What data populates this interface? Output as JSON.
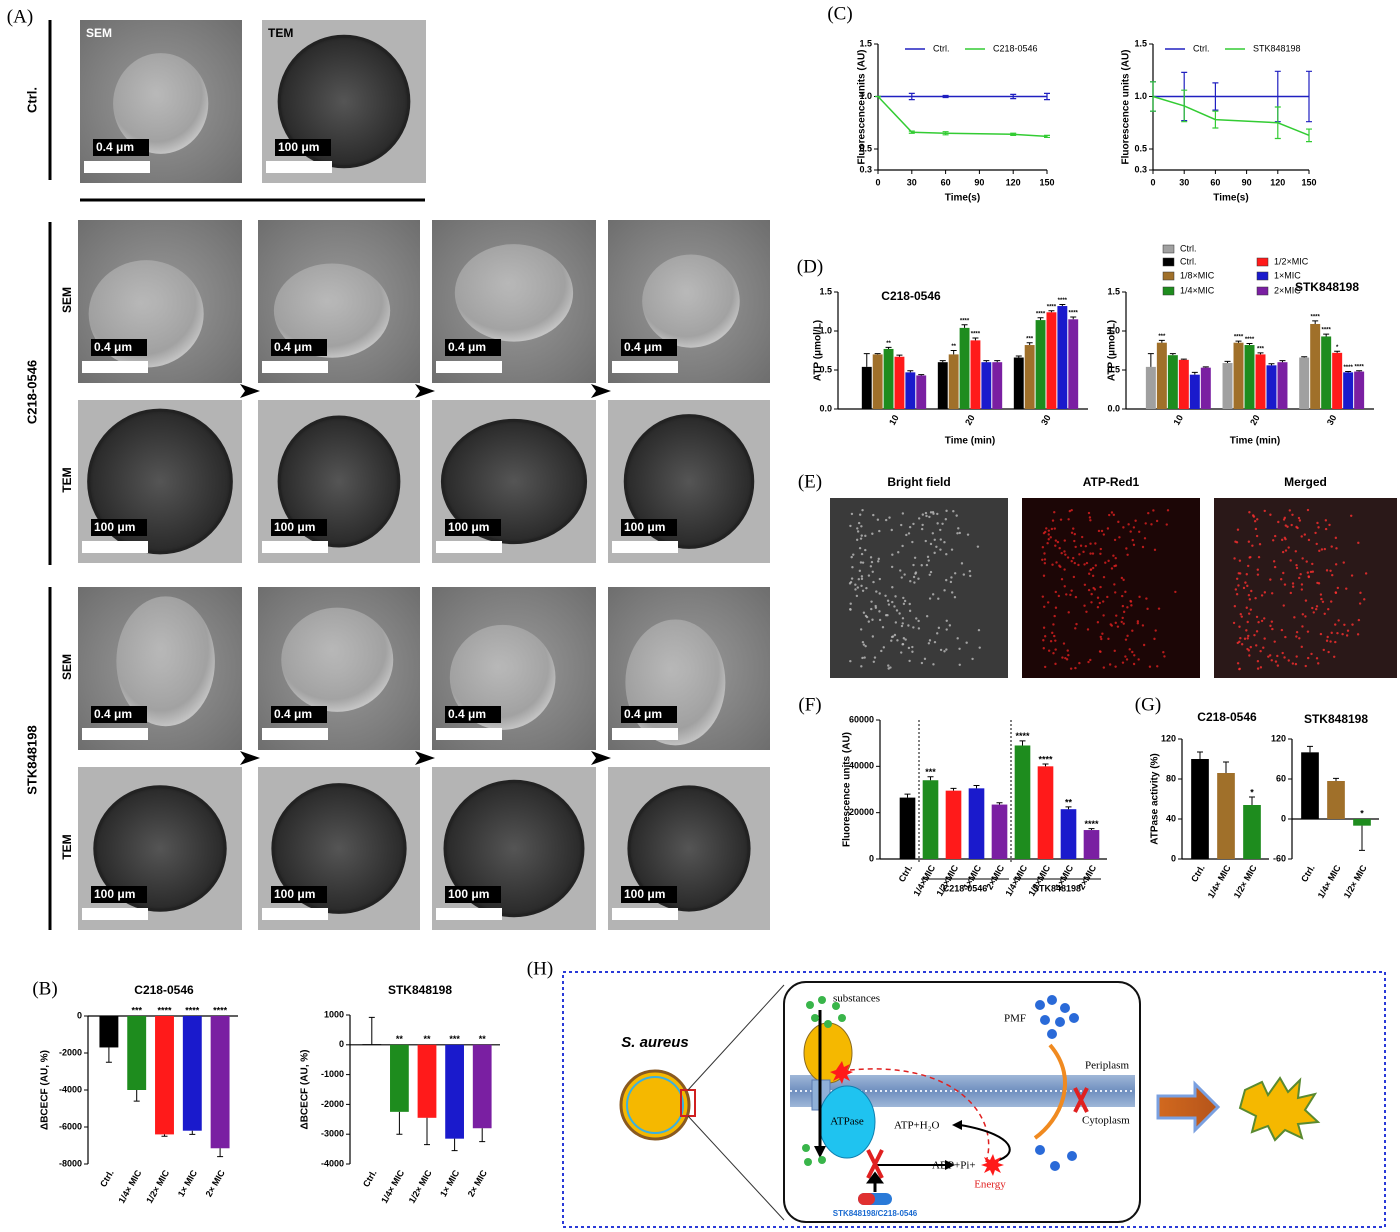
{
  "panel_labels": [
    "(A)",
    "(B)",
    "(C)",
    "(D)",
    "(E)",
    "(F)",
    "(G)",
    "(H)"
  ],
  "micrographs": {
    "group_labels": [
      "Ctrl.",
      "C218-0546",
      "STK848198"
    ],
    "ctrl_images": [
      {
        "label": "SEM",
        "scale": "0.4 μm"
      },
      {
        "label": "TEM",
        "scale": "100 μm"
      }
    ],
    "rows": [
      {
        "label": "SEM",
        "scales": [
          "0.4 μm",
          "0.4 μm",
          "0.4 μm",
          "0.4 μm"
        ]
      },
      {
        "label": "TEM",
        "scales": [
          "100 μm",
          "100 μm",
          "100 μm",
          "100 μm"
        ]
      },
      {
        "label": "SEM",
        "scales": [
          "0.4 μm",
          "0.4 μm",
          "0.4 μm",
          "0.4 μm"
        ]
      },
      {
        "label": "TEM",
        "scales": [
          "100 μm",
          "100 μm",
          "100 μm",
          "100 μm"
        ]
      }
    ]
  },
  "fluorescence_images": {
    "titles": [
      "Bright field",
      "ATP-Red1",
      "Merged"
    ]
  },
  "chart_data": [
    {
      "type": "bar",
      "title": "C218-0546",
      "y_label": "ΔBCECF (AU, %)",
      "categories": [
        "Ctrl.",
        "1/4× MIC",
        "1/2× MIC",
        "1× MIC",
        "2× MIC"
      ],
      "values": [
        -1700,
        -4000,
        -6400,
        -6200,
        -7150
      ],
      "errors": [
        800,
        600,
        100,
        200,
        450
      ],
      "significance": [
        null,
        "***",
        "****",
        "****",
        "****"
      ],
      "colors": [
        "#000000",
        "#1e8c1e",
        "#ff1a1a",
        "#1a1acc",
        "#7a1fa2"
      ],
      "ylim": [
        -8000,
        0
      ],
      "yticks": [
        -8000,
        -6000,
        -4000,
        -2000,
        0
      ]
    },
    {
      "type": "bar",
      "title": "STK848198",
      "y_label": "ΔBCECF (AU, %)",
      "categories": [
        "Ctrl.",
        "1/4× MIC",
        "1/2× MIC",
        "1× MIC",
        "2× MIC"
      ],
      "values": [
        20,
        -2250,
        -2450,
        -3150,
        -2800
      ],
      "errors": [
        900,
        750,
        900,
        400,
        450
      ],
      "significance": [
        null,
        "**",
        "**",
        "***",
        "**"
      ],
      "colors": [
        "#000000",
        "#1e8c1e",
        "#ff1a1a",
        "#1a1acc",
        "#7a1fa2"
      ],
      "ylim": [
        -4000,
        1000
      ],
      "yticks": [
        -4000,
        -3000,
        -2000,
        -1000,
        0,
        1000
      ]
    },
    {
      "type": "line",
      "y_label": "Fluorescence units (AU)",
      "x_label": "Time(s)",
      "x": [
        0,
        30,
        60,
        120,
        150
      ],
      "xlim": [
        0,
        150
      ],
      "xticks": [
        0,
        30,
        60,
        90,
        120,
        150
      ],
      "ylim": [
        0.3,
        1.5
      ],
      "yticks": [
        0.3,
        0.5,
        {
          "value": 1,
          "label": "1.0"
        },
        {
          "value": 1.5,
          "label": "1.5"
        }
      ],
      "series": [
        {
          "name": "Ctrl.",
          "color": "#2020c0",
          "values": [
            1,
            1,
            1,
            1,
            1
          ],
          "errors": [
            0,
            0.03,
            0.01,
            0.02,
            0.03
          ]
        },
        {
          "name": "C218-0546",
          "color": "#33cc33",
          "values": [
            1,
            0.66,
            0.65,
            0.64,
            0.62
          ],
          "errors": [
            0,
            0.01,
            0.015,
            0.01,
            0.01
          ]
        }
      ]
    },
    {
      "type": "line",
      "y_label": "Fluorescence units (AU)",
      "x_label": "Time(s)",
      "x": [
        0,
        30,
        60,
        120,
        150
      ],
      "xlim": [
        0,
        150
      ],
      "xticks": [
        0,
        30,
        60,
        90,
        120,
        150
      ],
      "ylim": [
        0.3,
        1.5
      ],
      "yticks": [
        0.3,
        0.5,
        {
          "value": 1,
          "label": "1.0"
        },
        {
          "value": 1.5,
          "label": "1.5"
        }
      ],
      "series": [
        {
          "name": "Ctrl.",
          "color": "#2020c0",
          "values": [
            1,
            1,
            1,
            1,
            1
          ],
          "errors": [
            0.14,
            0.23,
            0.13,
            0.24,
            0.24
          ]
        },
        {
          "name": "STK848198",
          "color": "#33cc33",
          "values": [
            1,
            0.91,
            0.78,
            0.75,
            0.63
          ],
          "errors": [
            0.14,
            0.15,
            0.08,
            0.15,
            0.06
          ]
        }
      ]
    },
    {
      "type": "bar",
      "title": "C218-0546",
      "y_label": "ATP (μmol/L)",
      "x_label": "Time (min)",
      "categories": [
        "10",
        "20",
        "30"
      ],
      "ylim": [
        0,
        1.5
      ],
      "yticks": [
        {
          "value": 0,
          "label": "0.0"
        },
        0.5,
        {
          "value": 1,
          "label": "1.0"
        },
        {
          "value": 1.5,
          "label": "1.5"
        }
      ],
      "series": [
        {
          "name": "Ctrl.",
          "color": "#000000",
          "values": [
            0.54,
            0.6,
            0.66
          ],
          "errors": [
            0.17,
            0.02,
            0.02
          ],
          "significance": [
            null,
            null,
            null
          ]
        },
        {
          "name": "1/8×MIC",
          "color": "#a0702a",
          "values": [
            0.7,
            0.7,
            0.82
          ],
          "errors": [
            0.01,
            0.05,
            0.03
          ],
          "significance": [
            null,
            "**",
            "***"
          ]
        },
        {
          "name": "1/4×MIC",
          "color": "#1e8c1e",
          "values": [
            0.77,
            1.04,
            1.14
          ],
          "errors": [
            0.02,
            0.04,
            0.03
          ],
          "significance": [
            "**",
            "****",
            "****"
          ]
        },
        {
          "name": "1/2×MIC",
          "color": "#ff1a1a",
          "values": [
            0.67,
            0.88,
            1.24
          ],
          "errors": [
            0.02,
            0.03,
            0.02
          ],
          "significance": [
            null,
            "****",
            "****"
          ]
        },
        {
          "name": "1×MIC",
          "color": "#1a1acc",
          "values": [
            0.47,
            0.6,
            1.32
          ],
          "errors": [
            0.02,
            0.02,
            0.02
          ],
          "significance": [
            null,
            null,
            "****"
          ]
        },
        {
          "name": "2×MIC",
          "color": "#7a1fa2",
          "values": [
            0.43,
            0.6,
            1.15
          ],
          "errors": [
            0.01,
            0.02,
            0.03
          ],
          "significance": [
            null,
            null,
            "****"
          ]
        }
      ]
    },
    {
      "type": "bar",
      "title": "STK848198",
      "y_label": "ATP (μmol/L)",
      "x_label": "Time (min)",
      "categories": [
        "10",
        "20",
        "30"
      ],
      "ylim": [
        0,
        1.5
      ],
      "yticks": [
        {
          "value": 0,
          "label": "0.0"
        },
        0.5,
        {
          "value": 1,
          "label": "1.0"
        },
        {
          "value": 1.5,
          "label": "1.5"
        }
      ],
      "series": [
        {
          "name": "Ctrl.",
          "color": "#a0a0a0",
          "values": [
            0.54,
            0.59,
            0.66
          ],
          "errors": [
            0.17,
            0.02,
            0.01
          ],
          "significance": [
            null,
            null,
            null
          ]
        },
        {
          "name": "1/8×MIC",
          "color": "#a0702a",
          "values": [
            0.85,
            0.85,
            1.09
          ],
          "errors": [
            0.03,
            0.02,
            0.04
          ],
          "significance": [
            "***",
            "****",
            "****"
          ]
        },
        {
          "name": "1/4×MIC",
          "color": "#1e8c1e",
          "values": [
            0.69,
            0.82,
            0.93
          ],
          "errors": [
            0.02,
            0.02,
            0.03
          ],
          "significance": [
            null,
            "****",
            "****"
          ]
        },
        {
          "name": "1/2×MIC",
          "color": "#ff1a1a",
          "values": [
            0.63,
            0.7,
            0.72
          ],
          "errors": [
            0.01,
            0.02,
            0.02
          ],
          "significance": [
            null,
            "***",
            "*"
          ]
        },
        {
          "name": "1×MIC",
          "color": "#1a1acc",
          "values": [
            0.44,
            0.56,
            0.47
          ],
          "errors": [
            0.03,
            0.02,
            0.01
          ],
          "significance": [
            null,
            null,
            "****"
          ]
        },
        {
          "name": "2×MIC",
          "color": "#7a1fa2",
          "values": [
            0.53,
            0.6,
            0.48
          ],
          "errors": [
            0.01,
            0.02,
            0.01
          ],
          "significance": [
            null,
            null,
            "****"
          ]
        }
      ]
    },
    {
      "type": "bar",
      "y_label": "Fluorescence units (AU)",
      "categories": [
        "Ctrl.",
        "1/4×MIC",
        "1/2×MIC",
        "1×MIC",
        "2×MIC",
        "1/4×MIC",
        "1/2×MIC",
        "1×MIC",
        "2×MIC"
      ],
      "group_labels": [
        "C218-0546",
        "STK848198"
      ],
      "values": [
        26500,
        34000,
        29500,
        30500,
        23500,
        49000,
        40000,
        21500,
        12500
      ],
      "errors": [
        1500,
        1500,
        1000,
        1200,
        800,
        2000,
        1000,
        1000,
        600
      ],
      "significance": [
        null,
        "***",
        null,
        null,
        null,
        "****",
        "****",
        "**",
        "****"
      ],
      "colors": [
        "#000000",
        "#1e8c1e",
        "#ff1a1a",
        "#1a1acc",
        "#7a1fa2",
        "#1e8c1e",
        "#ff1a1a",
        "#1a1acc",
        "#7a1fa2"
      ],
      "ylim": [
        0,
        60000
      ],
      "yticks": [
        0,
        20000,
        40000,
        60000
      ]
    },
    {
      "type": "bar",
      "title": "C218-0546",
      "y_label": "ATPase activity (%)",
      "categories": [
        "Ctrl.",
        "1/4× MIC",
        "1/2× MIC"
      ],
      "values": [
        100,
        86,
        54
      ],
      "errors": [
        7,
        11,
        8
      ],
      "significance": [
        null,
        null,
        "*"
      ],
      "colors": [
        "#000000",
        "#a0702a",
        "#1e8c1e"
      ],
      "ylim": [
        0,
        120
      ],
      "yticks": [
        0,
        40,
        80,
        120
      ]
    },
    {
      "type": "bar",
      "title": "STK848198",
      "categories": [
        "Ctrl.",
        "1/4× MIC",
        "1/2× MIC"
      ],
      "values": [
        100,
        57,
        -10
      ],
      "errors": [
        9,
        4,
        37
      ],
      "significance": [
        null,
        null,
        "*"
      ],
      "colors": [
        "#000000",
        "#a0702a",
        "#1e8c1e"
      ],
      "ylim": [
        -60,
        120
      ],
      "yticks": [
        -60,
        0,
        60,
        120
      ]
    }
  ],
  "diagram": {
    "organism": "S. aureus",
    "substances": "substances",
    "pmf": "PMF",
    "periplasm": "Periplasm",
    "cytoplasm": "Cytoplasm",
    "atpase": "ATPase",
    "atp": "ATP+H₂O",
    "adp": "ADP+Pi+",
    "energy": "Energy",
    "compounds": "STK848198/C218-0546"
  }
}
